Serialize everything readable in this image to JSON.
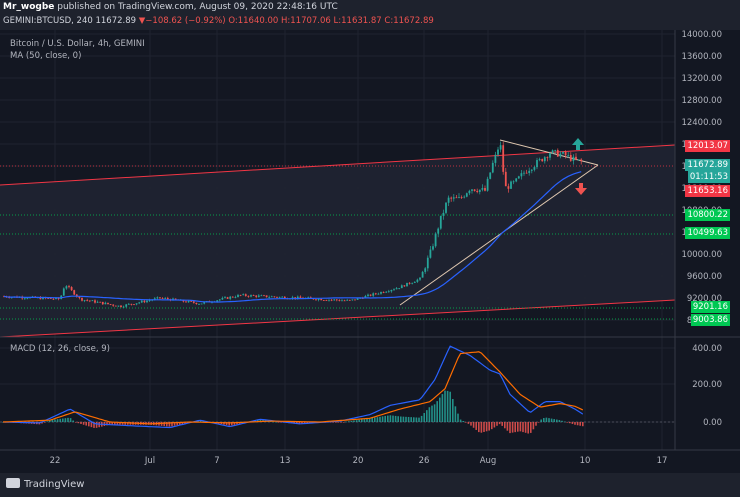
{
  "header": {
    "publisher": "Mr_wogbe",
    "published_text": " published on TradingView.com, August 09, 2020 22:48:16 UTC",
    "symbol": "GEMINI:BTCUSD, 240",
    "last_price": "11672.89",
    "change": "−108.62 (−0.92%)",
    "open": "O:11640.00",
    "high": "H:11707.06",
    "low": "L:11631.87",
    "close": "C:11672.89"
  },
  "legend": {
    "title": "Bitcoin / U.S. Dollar, 4h, GEMINI",
    "ma": "MA (50, close, 0)",
    "macd": "MACD (12, 26, close, 9)"
  },
  "price_axis": [
    "14000.00",
    "13600.00",
    "13200.00",
    "12800.00",
    "12400.00",
    "12000.00",
    "11600.00",
    "11200.00",
    "10800.00",
    "10400.00",
    "10000.00",
    "9600.00",
    "9200.00",
    "8800.00"
  ],
  "price_tags": [
    {
      "label": "12013.07",
      "color": "#f23645"
    },
    {
      "label": "11672.89",
      "color": "#26a69a"
    },
    {
      "label": "01:11:53",
      "color": "#26a69a"
    },
    {
      "label": "11653.16",
      "color": "#f23645"
    },
    {
      "label": "10800.22",
      "color": "#00c853"
    },
    {
      "label": "10499.63",
      "color": "#00c853"
    },
    {
      "label": "9201.16",
      "color": "#00c853"
    },
    {
      "label": "9003.86",
      "color": "#00c853"
    }
  ],
  "macd_axis": [
    "400.00",
    "200.00",
    "0.00"
  ],
  "time_axis": [
    "22",
    "Jul",
    "7",
    "13",
    "20",
    "26",
    "Aug",
    "10",
    "17"
  ],
  "colors": {
    "up": "#26a69a",
    "down": "#ef5350",
    "ma": "#2962ff",
    "signal": "#ff6d00",
    "channel": "#f23645",
    "support": "#00c853"
  },
  "branding": "TradingView"
}
